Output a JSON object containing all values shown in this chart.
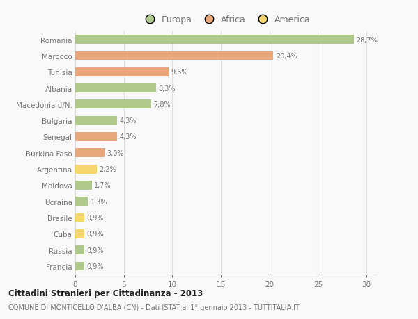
{
  "countries": [
    "Romania",
    "Marocco",
    "Tunisia",
    "Albania",
    "Macedonia d/N.",
    "Bulgaria",
    "Senegal",
    "Burkina Faso",
    "Argentina",
    "Moldova",
    "Ucraina",
    "Brasile",
    "Cuba",
    "Russia",
    "Francia"
  ],
  "values": [
    28.7,
    20.4,
    9.6,
    8.3,
    7.8,
    4.3,
    4.3,
    3.0,
    2.2,
    1.7,
    1.3,
    0.9,
    0.9,
    0.9,
    0.9
  ],
  "labels": [
    "28,7%",
    "20,4%",
    "9,6%",
    "8,3%",
    "7,8%",
    "4,3%",
    "4,3%",
    "3,0%",
    "2,2%",
    "1,7%",
    "1,3%",
    "0,9%",
    "0,9%",
    "0,9%",
    "0,9%"
  ],
  "colors": [
    "#aec98a",
    "#e8a87c",
    "#e8a87c",
    "#aec98a",
    "#aec98a",
    "#aec98a",
    "#e8a87c",
    "#e8a87c",
    "#f5d76e",
    "#aec98a",
    "#aec98a",
    "#f5d76e",
    "#f5d76e",
    "#aec98a",
    "#aec98a"
  ],
  "legend_labels": [
    "Europa",
    "Africa",
    "America"
  ],
  "legend_colors": [
    "#aec98a",
    "#e8a87c",
    "#f5d76e"
  ],
  "title_bold": "Cittadini Stranieri per Cittadinanza - 2013",
  "subtitle": "COMUNE DI MONTICELLO D'ALBA (CN) - Dati ISTAT al 1° gennaio 2013 - TUTTITALIA.IT",
  "xlim": [
    0,
    31
  ],
  "xticks": [
    0,
    5,
    10,
    15,
    20,
    25,
    30
  ],
  "background_color": "#f9f9f9",
  "grid_color": "#e0e0e0",
  "bar_height": 0.55,
  "text_color": "#777777",
  "title_color": "#222222"
}
